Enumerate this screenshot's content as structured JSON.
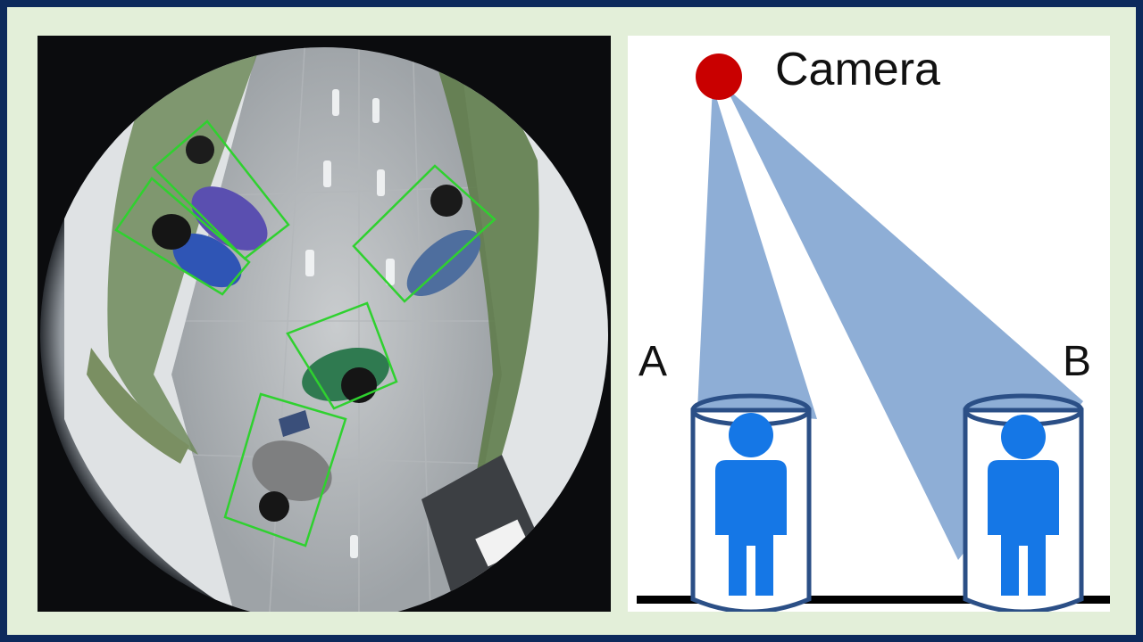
{
  "photo": {
    "description_icon": "fisheye-camera-image",
    "detections": [
      {
        "id": "person-1"
      },
      {
        "id": "person-2"
      },
      {
        "id": "person-3"
      },
      {
        "id": "person-4"
      },
      {
        "id": "person-5"
      }
    ]
  },
  "diagram": {
    "camera_label": "Camera",
    "person_a_label": "A",
    "person_b_label": "B"
  },
  "colors": {
    "background_border": "#0d2a5c",
    "background_fill": "#e3efd9",
    "detection_box": "#2fd12f",
    "camera_dot": "#c90000",
    "view_cone": "#8eaed6",
    "person_icon": "#1577e6",
    "cylinder_stroke": "#2b4f86"
  }
}
